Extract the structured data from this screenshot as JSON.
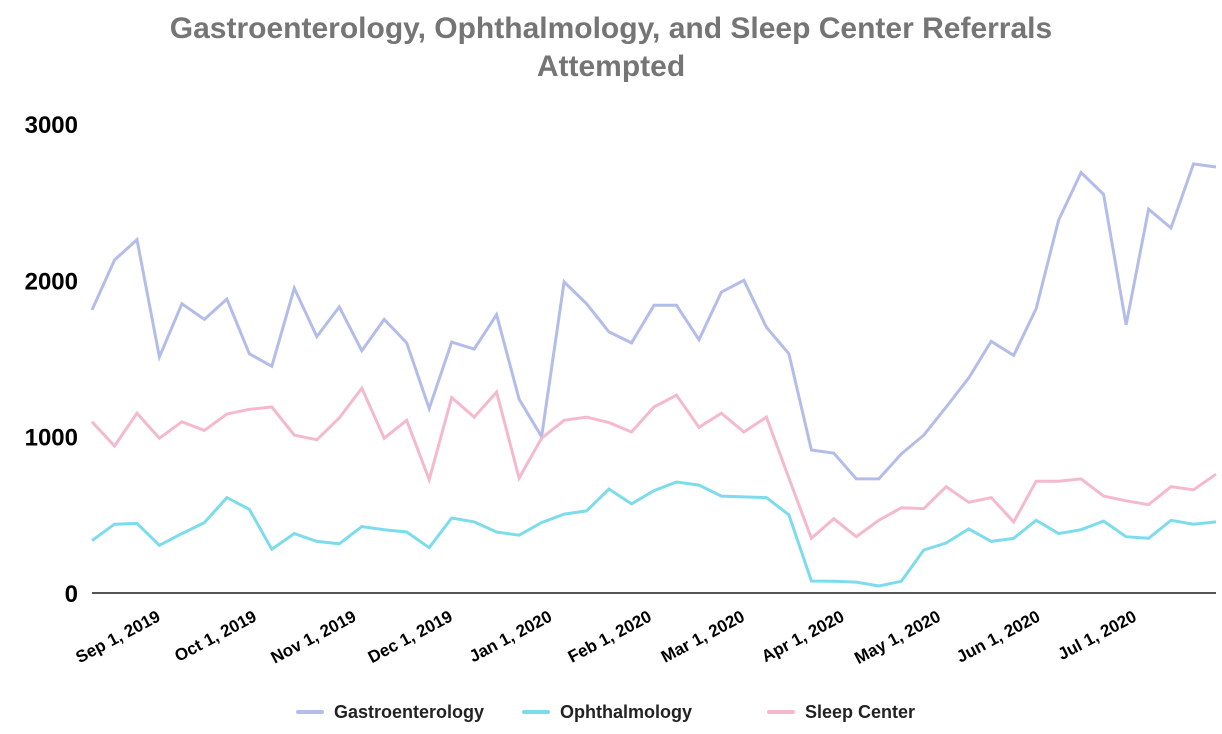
{
  "chart_data": {
    "type": "line",
    "title": "Gastroenterology, Ophthalmology, and Sleep Center Referrals Attempted",
    "title_lines": [
      "Gastroenterology, Ophthalmology, and Sleep Center Referrals",
      "Attempted"
    ],
    "xlabel": "",
    "ylabel": "",
    "ylim": [
      0,
      3000
    ],
    "yticks": [
      "0",
      "1000",
      "2000",
      "3000"
    ],
    "x_start": "2019-08-11",
    "x_step_days": 7,
    "xlim": [
      "2019-08-11",
      "2020-07-26"
    ],
    "xticks": [
      {
        "date": "2019-09-01",
        "label": "Sep 1, 2019"
      },
      {
        "date": "2019-10-01",
        "label": "Oct 1, 2019"
      },
      {
        "date": "2019-11-01",
        "label": "Nov 1, 2019"
      },
      {
        "date": "2019-12-01",
        "label": "Dec 1, 2019"
      },
      {
        "date": "2020-01-01",
        "label": "Jan 1, 2020"
      },
      {
        "date": "2020-02-01",
        "label": "Feb 1, 2020"
      },
      {
        "date": "2020-03-01",
        "label": "Mar 1, 2020"
      },
      {
        "date": "2020-04-01",
        "label": "Apr 1, 2020"
      },
      {
        "date": "2020-05-01",
        "label": "May 1, 2020"
      },
      {
        "date": "2020-06-01",
        "label": "Jun 1, 2020"
      },
      {
        "date": "2020-07-01",
        "label": "Jul 1, 2020"
      }
    ],
    "grid": false,
    "legend_position": "bottom",
    "series": [
      {
        "name": "Gastroenterology",
        "color": "#b4bde9",
        "values": [
          1810,
          2130,
          2260,
          1510,
          1850,
          1750,
          1880,
          1530,
          1450,
          1950,
          1640,
          1830,
          1550,
          1750,
          1600,
          1180,
          1605,
          1560,
          1780,
          1240,
          1000,
          1990,
          1850,
          1670,
          1600,
          1840,
          1840,
          1620,
          1925,
          2000,
          1700,
          1530,
          915,
          895,
          730,
          730,
          890,
          1010,
          1190,
          1375,
          1610,
          1520,
          1820,
          2385,
          2690,
          2550,
          1715,
          2455,
          2335,
          2745,
          2725
        ]
      },
      {
        "name": "Ophthalmology",
        "color": "#7ddcec",
        "values": [
          335,
          440,
          445,
          305,
          380,
          450,
          610,
          535,
          280,
          380,
          330,
          315,
          425,
          405,
          390,
          290,
          480,
          455,
          390,
          370,
          450,
          505,
          525,
          665,
          570,
          655,
          710,
          690,
          620,
          615,
          610,
          500,
          77,
          75,
          70,
          45,
          75,
          275,
          320,
          410,
          330,
          350,
          465,
          380,
          405,
          460,
          360,
          350,
          465,
          440,
          455
        ]
      },
      {
        "name": "Sleep Center",
        "color": "#f5b9ce",
        "values": [
          1095,
          940,
          1150,
          990,
          1095,
          1040,
          1145,
          1175,
          1190,
          1010,
          980,
          1120,
          1310,
          990,
          1105,
          725,
          1250,
          1125,
          1285,
          735,
          990,
          1105,
          1125,
          1090,
          1030,
          1190,
          1265,
          1060,
          1150,
          1030,
          1125,
          735,
          350,
          475,
          360,
          465,
          545,
          540,
          680,
          580,
          610,
          455,
          715,
          715,
          730,
          620,
          590,
          565,
          680,
          660,
          760
        ]
      }
    ]
  }
}
